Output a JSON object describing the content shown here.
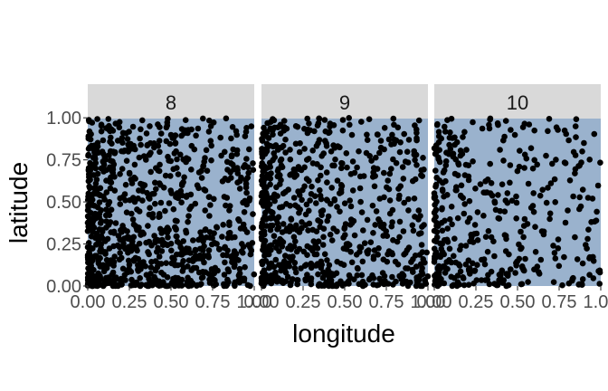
{
  "chart_data": {
    "type": "scatter",
    "facet_by": "month",
    "facets": [
      {
        "label": "8",
        "n_points": 900,
        "lon_skew": 1.6,
        "lat_skew": 1.5
      },
      {
        "label": "9",
        "n_points": 700,
        "lon_skew": 1.6,
        "lat_skew": 1.5
      },
      {
        "label": "10",
        "n_points": 420,
        "lon_skew": 1.7,
        "lat_skew": 1.5
      }
    ],
    "xlabel": "longitude",
    "ylabel": "latitude",
    "xlim": [
      0,
      1
    ],
    "ylim": [
      0,
      1.2
    ],
    "x_ticks": [
      0,
      0.25,
      0.5,
      0.75,
      1
    ],
    "x_tick_labels": [
      "0.00",
      "0.25",
      "0.50",
      "0.75",
      "1.00"
    ],
    "y_ticks": [
      0,
      0.25,
      0.5,
      0.75,
      1
    ],
    "y_tick_labels": [
      "0.00",
      "0.25",
      "0.50",
      "0.75",
      "1.00"
    ],
    "panel_upper_band": [
      1,
      1.2
    ],
    "grid": false,
    "legend": "none",
    "colors": {
      "panel_background": "#9ab2cd",
      "panel_upper_band": "#ffffff",
      "strip_background": "#d9d9d9",
      "point": "#000000",
      "tick_text": "#4d4d4d",
      "axis_title": "#000000"
    }
  }
}
